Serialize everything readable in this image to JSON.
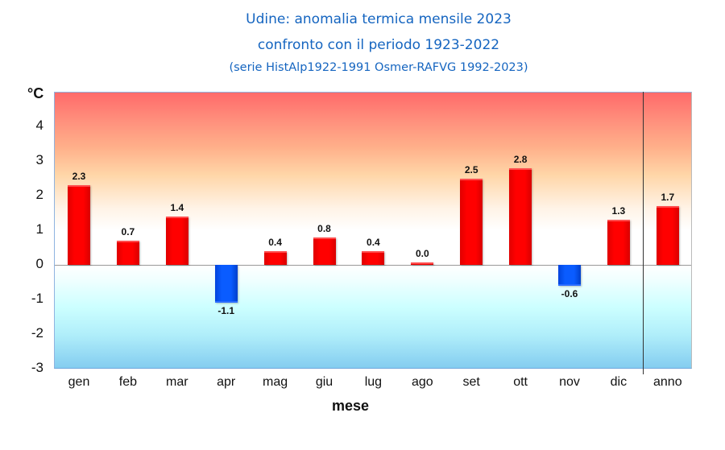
{
  "chart_data": {
    "type": "bar",
    "title": "Udine: anomalia termica mensile 2023",
    "subtitle": "confronto con il periodo 1923-2022",
    "note": "(serie HistAlp1922-1991 Osmer-RAFVG 1992-2023)",
    "xlabel": "mese",
    "ylabel": "°C",
    "ylim": [
      -3,
      5
    ],
    "yticks": [
      4,
      3,
      2,
      1,
      0,
      -1,
      -2,
      -3
    ],
    "grid": false,
    "categories": [
      "gen",
      "feb",
      "mar",
      "apr",
      "mag",
      "giu",
      "lug",
      "ago",
      "set",
      "ott",
      "nov",
      "dic",
      "anno"
    ],
    "values": [
      2.3,
      0.7,
      1.4,
      -1.1,
      0.4,
      0.8,
      0.4,
      0.0,
      2.5,
      2.8,
      -0.6,
      1.3,
      1.7
    ],
    "value_labels": [
      "2.3",
      "0.7",
      "1.4",
      "-1.1",
      "0.4",
      "0.8",
      "0.4",
      "0.0",
      "2.5",
      "2.8",
      "-0.6",
      "1.3",
      "1.7"
    ],
    "colors": {
      "positive": "#ff0000",
      "negative": "#0a5cff"
    },
    "separator_before": "anno"
  }
}
